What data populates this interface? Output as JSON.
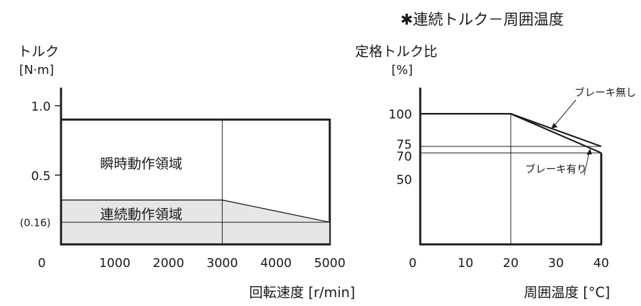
{
  "chart_data": [
    {
      "type": "area",
      "ylabel_line1": "トルク",
      "ylabel_line2": "[N·m]",
      "xlabel": "回転速度 [r/min]",
      "xlim": [
        0,
        5000
      ],
      "ylim": [
        0,
        1.2
      ],
      "x_ticks": [
        {
          "value": 0,
          "label": "0"
        },
        {
          "value": 1000,
          "label": "1000"
        },
        {
          "value": 2000,
          "label": "2000"
        },
        {
          "value": 3000,
          "label": "3000"
        },
        {
          "value": 4000,
          "label": "4000"
        },
        {
          "value": 5000,
          "label": "5000"
        }
      ],
      "y_ticks": [
        {
          "value": 1.0,
          "label": "1.0"
        },
        {
          "value": 0.5,
          "label": "0.5"
        },
        {
          "value": 0.16,
          "label": "(0.16)"
        }
      ],
      "regions": [
        {
          "name": "瞬時動作領域",
          "fill": "#ffffff",
          "points": [
            [
              0,
              0
            ],
            [
              0,
              0.9
            ],
            [
              5000,
              0.9
            ],
            [
              5000,
              0
            ]
          ]
        },
        {
          "name": "連続動作領域",
          "fill": "#e6e6e6",
          "points": [
            [
              0,
              0
            ],
            [
              0,
              0.32
            ],
            [
              3000,
              0.32
            ],
            [
              5000,
              0.16
            ],
            [
              5000,
              0
            ]
          ]
        }
      ],
      "ref_lines": {
        "horizontal": [
          0.16
        ],
        "vertical": [
          3000
        ]
      },
      "grid": false
    },
    {
      "type": "line",
      "title": "✱連続トルク－周囲温度",
      "ylabel_line1": "定格トルク比",
      "ylabel_line2": "[%]",
      "xlabel": "周囲温度 [°C]",
      "xlim": [
        0,
        40
      ],
      "ylim": [
        0,
        120
      ],
      "x_ticks": [
        {
          "value": 0,
          "label": "0"
        },
        {
          "value": 10,
          "label": "10"
        },
        {
          "value": 20,
          "label": "20"
        },
        {
          "value": 30,
          "label": "30"
        },
        {
          "value": 40,
          "label": "40"
        }
      ],
      "y_ticks": [
        {
          "value": 100,
          "label": "100"
        },
        {
          "value": 75,
          "label": "75"
        },
        {
          "value": 70,
          "label": "70"
        },
        {
          "value": 50,
          "label": "50"
        }
      ],
      "series": [
        {
          "name": "ブレーキ無し",
          "x": [
            0,
            20,
            40
          ],
          "y": [
            100,
            100,
            75
          ]
        },
        {
          "name": "ブレーキ有り",
          "x": [
            0,
            20,
            40
          ],
          "y": [
            100,
            100,
            70
          ]
        }
      ],
      "ref_lines": {
        "horizontal": [
          75,
          70
        ],
        "vertical": [
          20
        ]
      },
      "grid": false
    }
  ]
}
